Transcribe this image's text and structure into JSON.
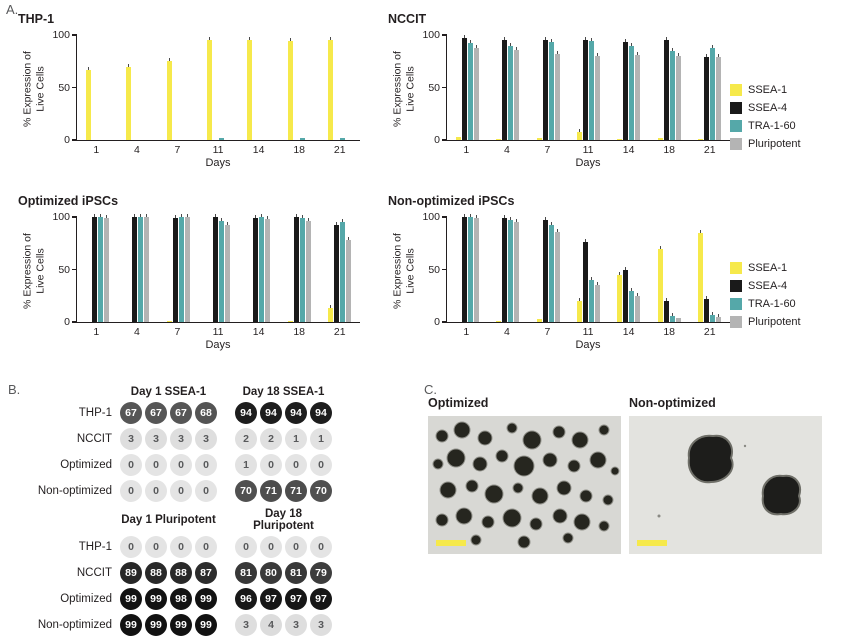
{
  "panels": {
    "a_label": "A.",
    "b_label": "B.",
    "c_label": "C."
  },
  "legend": {
    "items": [
      {
        "label": "SSEA-1",
        "color": "#F6E94B"
      },
      {
        "label": "SSEA-4",
        "color": "#1A1A1A"
      },
      {
        "label": "TRA-1-60",
        "color": "#55A8A9"
      },
      {
        "label": "Pluripotent",
        "color": "#B4B4B4"
      }
    ]
  },
  "chart_data": [
    {
      "type": "bar",
      "title": "THP-1",
      "categories": [
        "1",
        "4",
        "7",
        "11",
        "14",
        "18",
        "21"
      ],
      "xlabel": "Days",
      "ylabel": "% Expression of Live Cells",
      "ylim": [
        0,
        100
      ],
      "yticks": [
        0,
        50,
        100
      ],
      "series": [
        {
          "name": "SSEA-1",
          "values": [
            67,
            70,
            75,
            95,
            95,
            94,
            95
          ]
        },
        {
          "name": "SSEA-4",
          "values": [
            0,
            0,
            0,
            0,
            0,
            0,
            0
          ]
        },
        {
          "name": "TRA-1-60",
          "values": [
            0,
            0,
            0,
            2,
            0,
            2,
            2
          ]
        },
        {
          "name": "Pluripotent",
          "values": [
            0,
            0,
            0,
            0,
            0,
            0,
            0
          ]
        }
      ]
    },
    {
      "type": "bar",
      "title": "NCCIT",
      "categories": [
        "1",
        "4",
        "7",
        "11",
        "14",
        "18",
        "21"
      ],
      "xlabel": "Days",
      "ylabel": "% Expression of Live Cells",
      "ylim": [
        0,
        100
      ],
      "yticks": [
        0,
        50,
        100
      ],
      "series": [
        {
          "name": "SSEA-1",
          "values": [
            3,
            1,
            2,
            8,
            1,
            2,
            1
          ]
        },
        {
          "name": "SSEA-4",
          "values": [
            97,
            95,
            95,
            95,
            93,
            95,
            79
          ]
        },
        {
          "name": "TRA-1-60",
          "values": [
            92,
            90,
            93,
            94,
            90,
            85,
            88
          ]
        },
        {
          "name": "Pluripotent",
          "values": [
            88,
            86,
            82,
            80,
            81,
            80,
            79
          ]
        }
      ]
    },
    {
      "type": "bar",
      "title": "Optimized iPSCs",
      "categories": [
        "1",
        "4",
        "7",
        "11",
        "14",
        "18",
        "21"
      ],
      "xlabel": "Days",
      "ylabel": "% Expression of Live Cells",
      "ylim": [
        0,
        100
      ],
      "yticks": [
        0,
        50,
        100
      ],
      "series": [
        {
          "name": "SSEA-1",
          "values": [
            0,
            0,
            1,
            0,
            0,
            1,
            13
          ]
        },
        {
          "name": "SSEA-4",
          "values": [
            100,
            100,
            99,
            100,
            99,
            100,
            92
          ]
        },
        {
          "name": "TRA-1-60",
          "values": [
            100,
            100,
            100,
            96,
            100,
            99,
            95
          ]
        },
        {
          "name": "Pluripotent",
          "values": [
            99,
            100,
            100,
            92,
            98,
            96,
            78
          ]
        }
      ]
    },
    {
      "type": "bar",
      "title": "Non-optimized iPSCs",
      "categories": [
        "1",
        "4",
        "7",
        "11",
        "14",
        "18",
        "21"
      ],
      "xlabel": "Days",
      "ylabel": "% Expression of Live Cells",
      "ylim": [
        0,
        100
      ],
      "yticks": [
        0,
        50,
        100
      ],
      "series": [
        {
          "name": "SSEA-1",
          "values": [
            0,
            1,
            3,
            20,
            45,
            70,
            85
          ]
        },
        {
          "name": "SSEA-4",
          "values": [
            100,
            99,
            97,
            76,
            50,
            20,
            22
          ]
        },
        {
          "name": "TRA-1-60",
          "values": [
            100,
            97,
            92,
            40,
            30,
            6,
            7
          ]
        },
        {
          "name": "Pluripotent",
          "values": [
            99,
            95,
            86,
            35,
            25,
            4,
            5
          ]
        }
      ]
    }
  ],
  "panel_b": {
    "blocks": [
      {
        "row_labels": [
          "THP-1",
          "NCCIT",
          "Optimized",
          "Non-optimized"
        ],
        "grids": [
          {
            "title": "Day 1 SSEA-1",
            "values": [
              [
                67,
                67,
                67,
                68
              ],
              [
                3,
                3,
                3,
                3
              ],
              [
                0,
                0,
                0,
                0
              ],
              [
                0,
                0,
                0,
                0
              ]
            ]
          },
          {
            "title": "Day 18 SSEA-1",
            "values": [
              [
                94,
                94,
                94,
                94
              ],
              [
                2,
                2,
                1,
                1
              ],
              [
                1,
                0,
                0,
                0
              ],
              [
                70,
                71,
                71,
                70
              ]
            ]
          }
        ]
      },
      {
        "row_labels": [
          "THP-1",
          "NCCIT",
          "Optimized",
          "Non-optimized"
        ],
        "grids": [
          {
            "title": "Day 1 Pluripotent",
            "values": [
              [
                0,
                0,
                0,
                0
              ],
              [
                89,
                88,
                88,
                87
              ],
              [
                99,
                99,
                98,
                99
              ],
              [
                99,
                99,
                99,
                99
              ]
            ]
          },
          {
            "title": "Day 18 Pluripotent",
            "values": [
              [
                0,
                0,
                0,
                0
              ],
              [
                81,
                80,
                81,
                79
              ],
              [
                96,
                97,
                97,
                97
              ],
              [
                3,
                4,
                3,
                3
              ]
            ]
          }
        ]
      }
    ]
  },
  "panel_c": {
    "images": [
      {
        "title": "Optimized"
      },
      {
        "title": "Non-optimized"
      }
    ]
  }
}
